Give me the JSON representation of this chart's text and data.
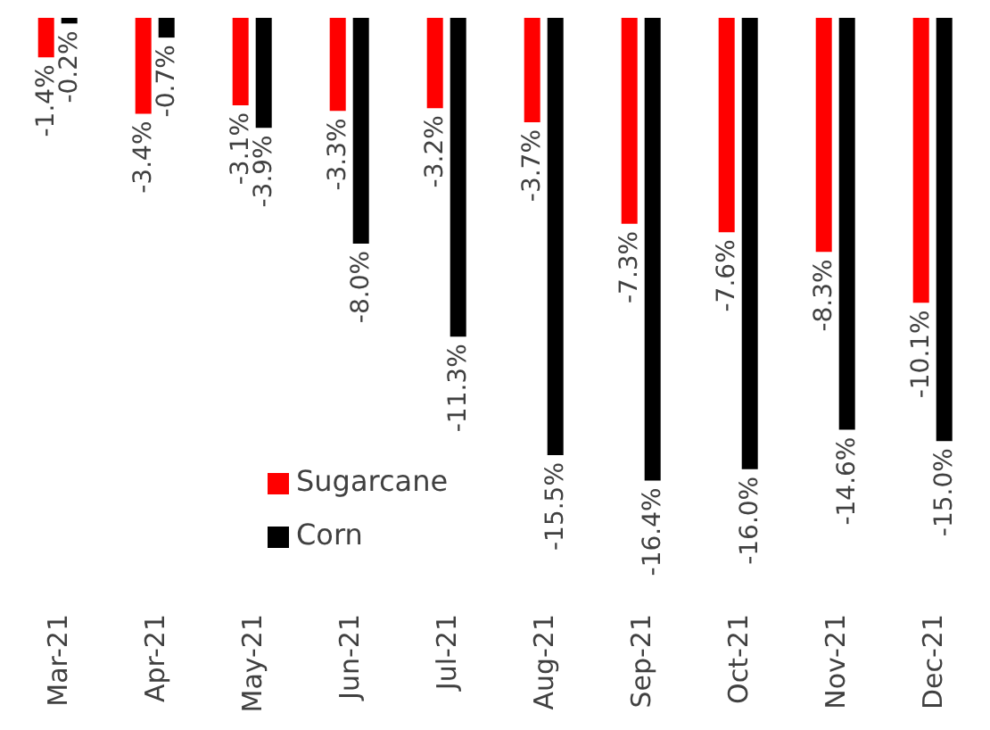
{
  "chart_data": {
    "type": "bar",
    "categories": [
      "Mar-21",
      "Apr-21",
      "May-21",
      "Jun-21",
      "Jul-21",
      "Aug-21",
      "Sep-21",
      "Oct-21",
      "Nov-21",
      "Dec-21"
    ],
    "series": [
      {
        "name": "Sugarcane",
        "color": "#ff0000",
        "values": [
          -1.4,
          -3.4,
          -3.1,
          -3.3,
          -3.2,
          -3.7,
          -7.3,
          -7.6,
          -8.3,
          -10.1
        ],
        "value_labels": [
          "-1.4%",
          "-3.4%",
          "-3.1%",
          "-3.3%",
          "-3.2%",
          "-3.7%",
          "-7.3%",
          "-7.6%",
          "-8.3%",
          "-10.1%"
        ]
      },
      {
        "name": "Corn",
        "color": "#000000",
        "values": [
          -0.2,
          -0.7,
          -3.9,
          -8.0,
          -11.3,
          -15.5,
          -16.4,
          -16.0,
          -14.6,
          -15.0
        ],
        "value_labels": [
          "-0.2%",
          "-0.7%",
          "-3.9%",
          "-8.0%",
          "-11.3%",
          "-15.5%",
          "-16.4%",
          "-16.0%",
          "-14.6%",
          "-15.0%"
        ]
      }
    ],
    "legend": "bottom left",
    "grid": false
  }
}
